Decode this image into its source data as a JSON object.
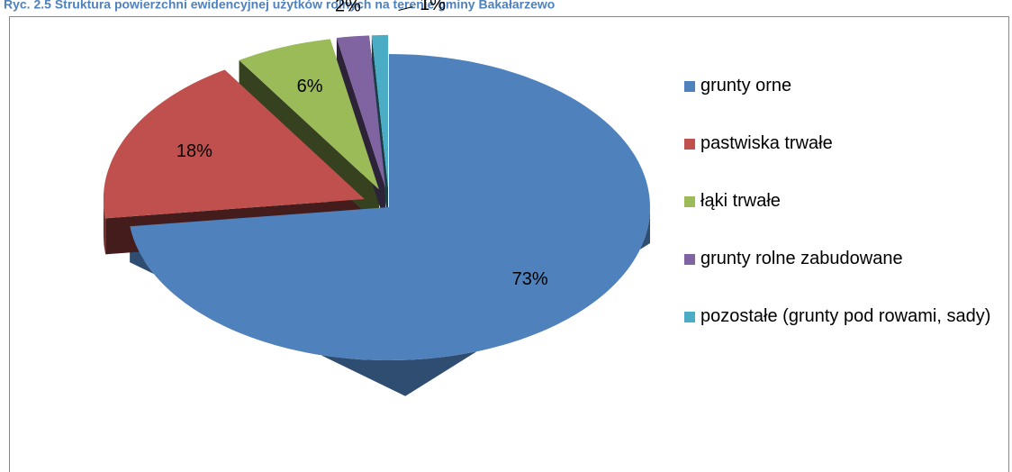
{
  "chart_data": {
    "type": "pie",
    "title": "Ryc. 2.5 Struktura powierzchni ewidencyjnej użytków rolnych na terenie gminy Bakałarzewo",
    "categories": [
      "grunty orne",
      "pastwiska trwałe",
      "łąki trwałe",
      "grunty rolne zabudowane",
      "pozostałe (grunty pod rowami, sady)"
    ],
    "values": [
      73,
      18,
      6,
      2,
      1
    ],
    "value_labels": [
      "73%",
      "18%",
      "6%",
      "2%",
      "1%"
    ],
    "colors": [
      "#4f81bd",
      "#c0504d",
      "#9bbb59",
      "#8064a2",
      "#4bacc6"
    ],
    "legend": "right"
  }
}
